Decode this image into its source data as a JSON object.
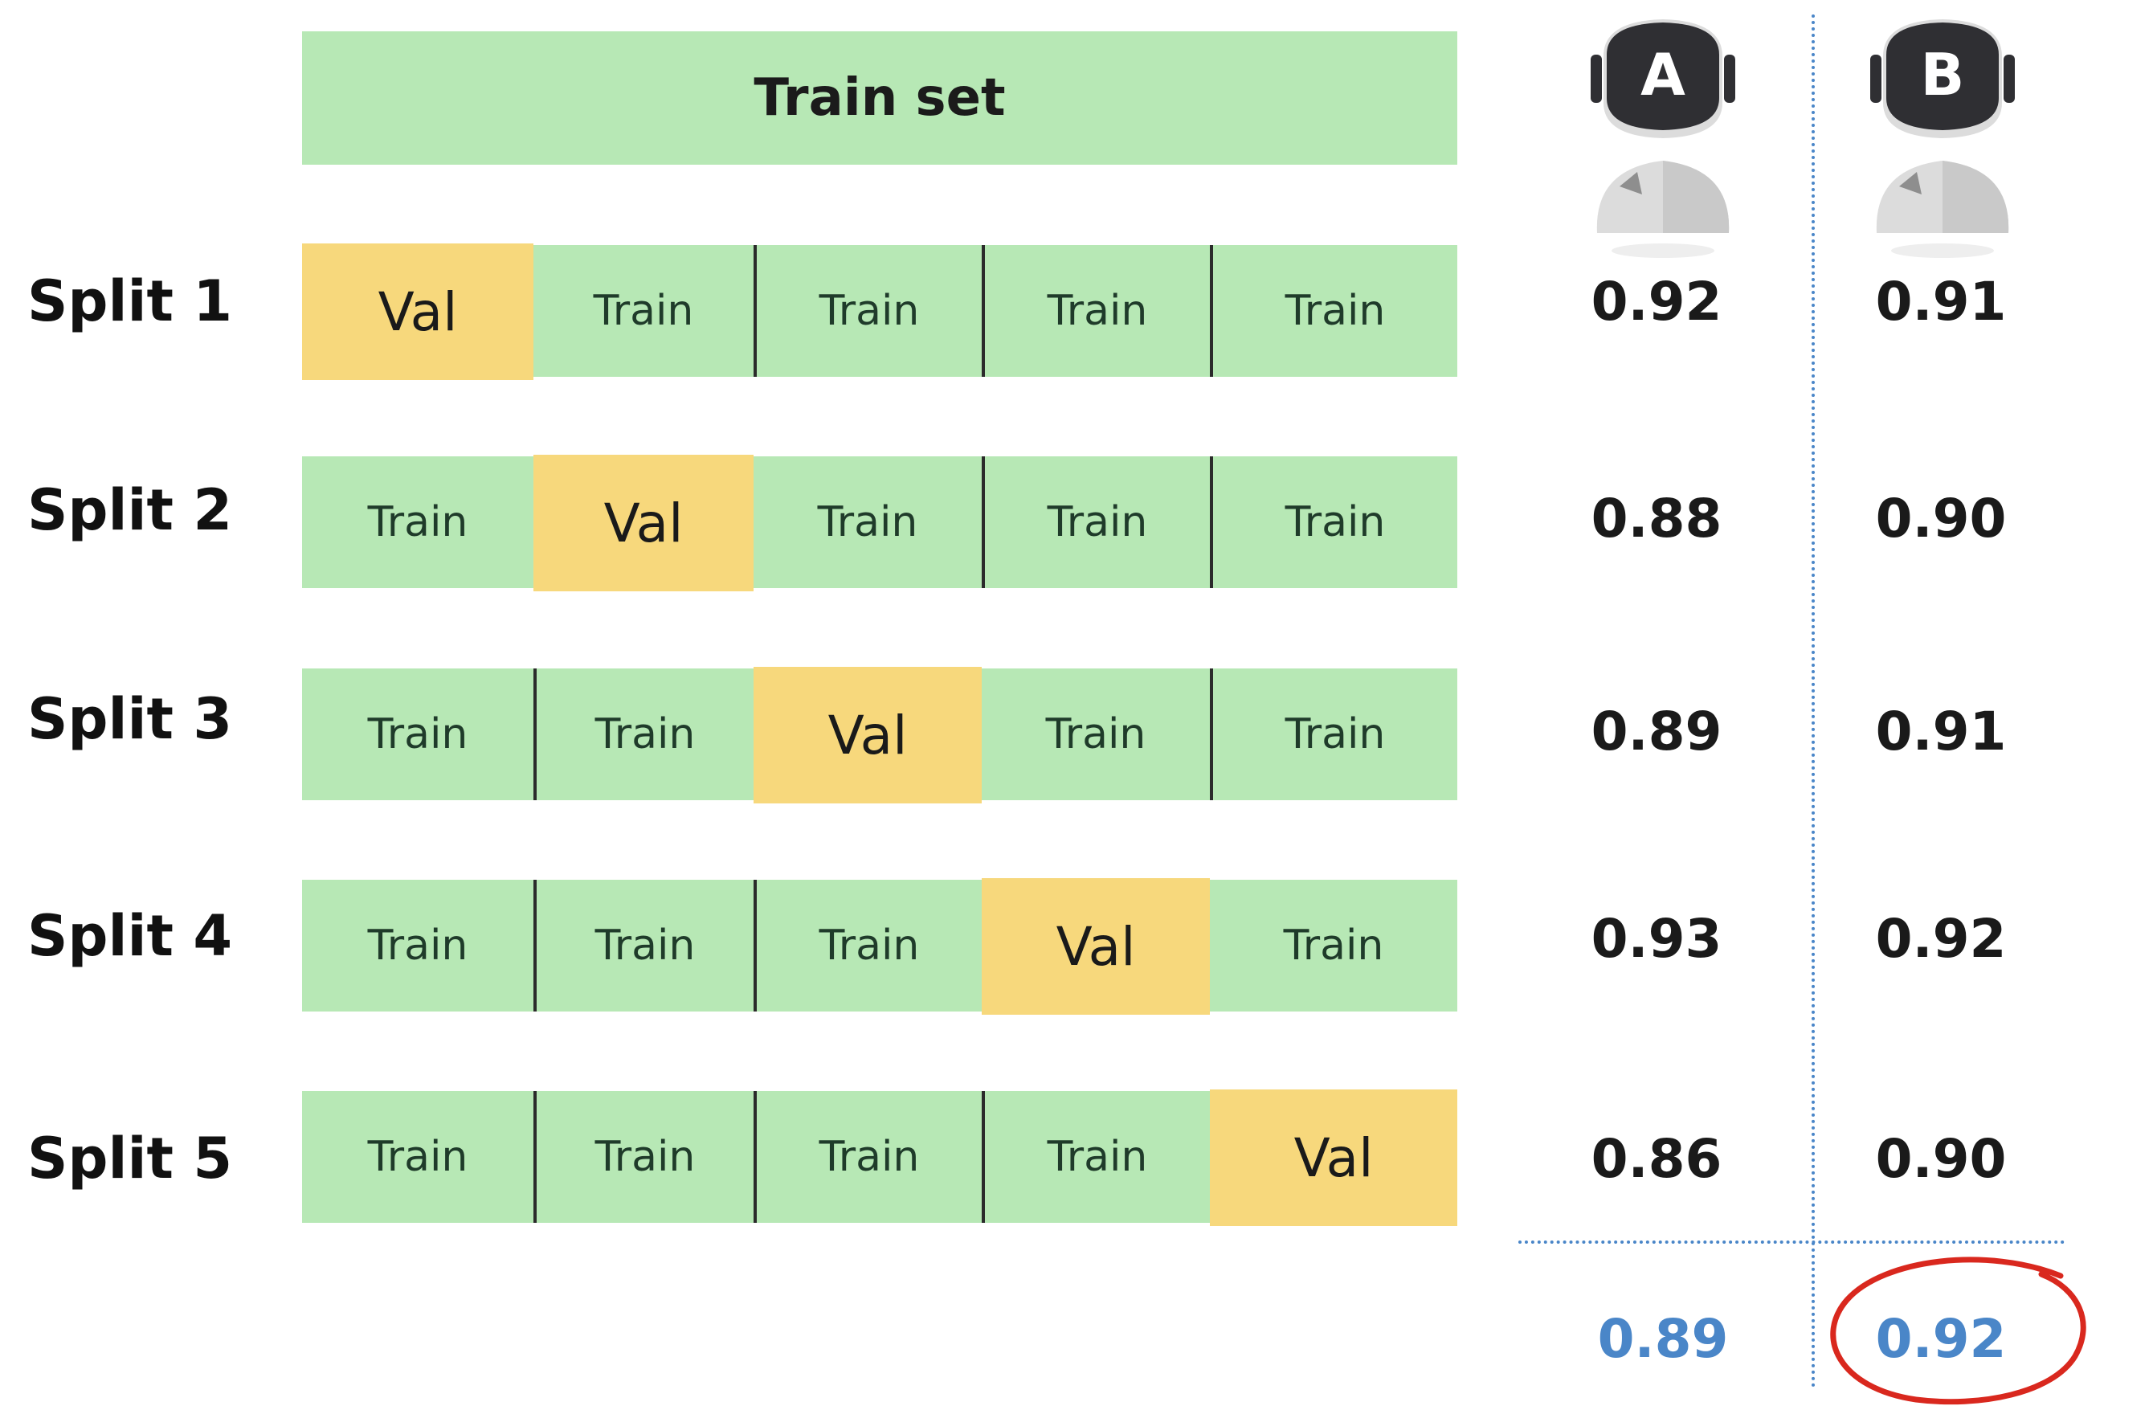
{
  "header": {
    "title": "Train set"
  },
  "models": [
    {
      "letter": "A",
      "average": "0.89"
    },
    {
      "letter": "B",
      "average": "0.92"
    }
  ],
  "splits": [
    {
      "label": "Split 1",
      "val_index": 0,
      "folds": [
        "Val",
        "Train",
        "Train",
        "Train",
        "Train"
      ],
      "scores": [
        "0.92",
        "0.91"
      ]
    },
    {
      "label": "Split 2",
      "val_index": 1,
      "folds": [
        "Train",
        "Val",
        "Train",
        "Train",
        "Train"
      ],
      "scores": [
        "0.88",
        "0.90"
      ]
    },
    {
      "label": "Split 3",
      "val_index": 2,
      "folds": [
        "Train",
        "Train",
        "Val",
        "Train",
        "Train"
      ],
      "scores": [
        "0.89",
        "0.91"
      ]
    },
    {
      "label": "Split 4",
      "val_index": 3,
      "folds": [
        "Train",
        "Train",
        "Train",
        "Val",
        "Train"
      ],
      "scores": [
        "0.93",
        "0.92"
      ]
    },
    {
      "label": "Split 5",
      "val_index": 4,
      "folds": [
        "Train",
        "Train",
        "Train",
        "Train",
        "Val"
      ],
      "scores": [
        "0.86",
        "0.90"
      ]
    }
  ],
  "colors": {
    "train": "#b7e8b5",
    "val": "#f7d87c",
    "separator": "#2b2b2b",
    "average_text": "#4a86c8",
    "dotted_lines": "#4a86c8",
    "highlight_circle": "#d9281e",
    "robot_head": "#2f2f33",
    "robot_body": "#dcdcdc"
  },
  "icons": {
    "model_a": "robot-icon",
    "model_b": "robot-icon",
    "best_marker": "circle-highlight"
  },
  "highlight": {
    "best_model": "B"
  }
}
